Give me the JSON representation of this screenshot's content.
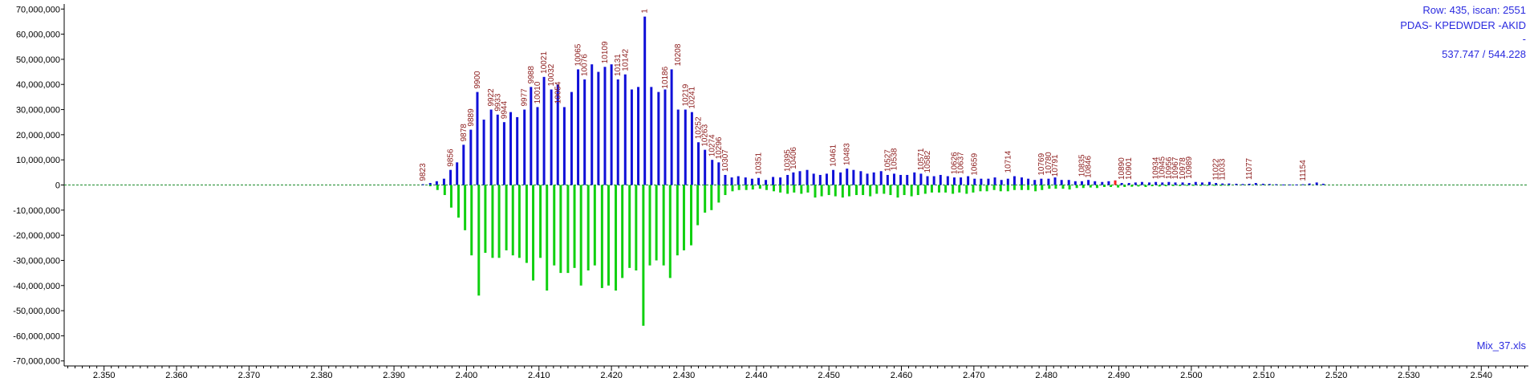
{
  "header": {
    "row_scan": "Row: 435, iscan: 2551",
    "peptide": "PDAS- KPEDWDER -AKID",
    "dash": "-",
    "mz_pair": "537.747 / 544.228"
  },
  "footer": {
    "file_name": "Mix_37.xls"
  },
  "colors": {
    "positive": "#1010d8",
    "negative": "#10d010",
    "flag": "#ff2020",
    "peak_label": "#8b1a1a",
    "baseline": "#1a8a2a",
    "axis": "#000000"
  },
  "chart_data": {
    "type": "bar",
    "title": "",
    "xlabel": "",
    "ylabel": "",
    "xlim": [
      2344.5,
      2546.5
    ],
    "ylim": [
      -72000000,
      72000000
    ],
    "x_ticks": [
      2350,
      2360,
      2370,
      2380,
      2390,
      2400,
      2410,
      2420,
      2430,
      2440,
      2450,
      2460,
      2470,
      2480,
      2490,
      2500,
      2510,
      2520,
      2530,
      2540
    ],
    "x_tick_labels": [
      "2,350",
      "2,360",
      "2,370",
      "2,380",
      "2,390",
      "2,400",
      "2,410",
      "2,420",
      "2,430",
      "2,440",
      "2,450",
      "2,460",
      "2,470",
      "2,480",
      "2,490",
      "2,500",
      "2,510",
      "2,520",
      "2,530",
      "2,540"
    ],
    "y_ticks": [
      70000000,
      60000000,
      50000000,
      40000000,
      30000000,
      20000000,
      10000000,
      0,
      -10000000,
      -20000000,
      -30000000,
      -40000000,
      -50000000,
      -60000000,
      -70000000
    ],
    "y_tick_labels": [
      "70,000,000",
      "60,000,000",
      "50,000,000",
      "40,000,000",
      "30,000,000",
      "20,000,000",
      "10,000,000",
      "0",
      "-10,000,000",
      "-20,000,000",
      "-30,000,000",
      "-40,000,000",
      "-50,000,000",
      "-60,000,000",
      "-70,000,000"
    ],
    "grid": false,
    "baseline_style": "dashed",
    "series": [
      {
        "color_key": "positive",
        "x": [
          2394.0,
          2395.0,
          2395.9,
          2396.9,
          2397.8,
          2398.7,
          2399.6,
          2400.6,
          2401.5,
          2402.4,
          2403.4,
          2404.3,
          2405.2,
          2406.1,
          2407.0,
          2408.0,
          2408.9,
          2409.8,
          2410.7,
          2411.7,
          2412.6,
          2413.5,
          2414.5,
          2415.4,
          2416.3,
          2417.3,
          2418.2,
          2419.1,
          2420.0,
          2420.9,
          2421.9,
          2422.8,
          2423.7,
          2424.6,
          2425.5,
          2426.5,
          2427.4,
          2428.3,
          2429.2,
          2430.2,
          2431.1,
          2432.0,
          2432.9,
          2433.9,
          2434.8,
          2435.7,
          2436.6,
          2437.5,
          2438.5,
          2439.4,
          2440.3,
          2441.3,
          2442.3,
          2443.3,
          2444.3,
          2445.1,
          2446.0,
          2447.0,
          2447.9,
          2448.8,
          2449.7,
          2450.6,
          2451.6,
          2452.5,
          2453.4,
          2454.4,
          2455.3,
          2456.2,
          2457.2,
          2458.1,
          2459.0,
          2459.9,
          2460.8,
          2461.8,
          2462.7,
          2463.6,
          2464.5,
          2465.4,
          2466.4,
          2467.3,
          2468.2,
          2469.2,
          2470.1,
          2471.0,
          2472.0,
          2472.9,
          2473.8,
          2474.7,
          2475.6,
          2476.6,
          2477.5,
          2478.4,
          2479.3,
          2480.3,
          2481.2,
          2482.1,
          2483.1,
          2484.0,
          2484.9,
          2485.8,
          2486.7,
          2487.7,
          2488.6,
          2489.5,
          2490.4,
          2491.4,
          2492.3,
          2493.2,
          2494.2,
          2495.1,
          2496.0,
          2496.9,
          2497.8,
          2498.8,
          2499.7,
          2500.6,
          2501.5,
          2502.5,
          2503.4,
          2504.3,
          2505.2,
          2506.2,
          2507.1,
          2508.0,
          2508.9,
          2509.9,
          2510.8,
          2511.7,
          2512.7,
          2513.6,
          2514.5,
          2515.4,
          2516.3,
          2517.3,
          2518.2
        ],
        "values": [
          300000,
          800000,
          1500000,
          2500000,
          6000000,
          9000000,
          16000000,
          22000000,
          37000000,
          26000000,
          30000000,
          28000000,
          25000000,
          29000000,
          27000000,
          30000000,
          39000000,
          31000000,
          43000000,
          38000000,
          40000000,
          31000000,
          37000000,
          46000000,
          42000000,
          48000000,
          45000000,
          47000000,
          48000000,
          42000000,
          44000000,
          38000000,
          39000000,
          67000000,
          39000000,
          37000000,
          38000000,
          46000000,
          30000000,
          30000000,
          29000000,
          17000000,
          14000000,
          10000000,
          9000000,
          4000000,
          3000000,
          3500000,
          3000000,
          2500000,
          2800000,
          2000000,
          3200000,
          3000000,
          4000000,
          5000000,
          5500000,
          6000000,
          4500000,
          4000000,
          4500000,
          6000000,
          5000000,
          6500000,
          6000000,
          5500000,
          4500000,
          5000000,
          5500000,
          4000000,
          4500000,
          4000000,
          4000000,
          5000000,
          4500000,
          3500000,
          3500000,
          4000000,
          3500000,
          3000000,
          3000000,
          3500000,
          2500000,
          2500000,
          2500000,
          3000000,
          2000000,
          2500000,
          3500000,
          3000000,
          2500000,
          2000000,
          2500000,
          2500000,
          3000000,
          2000000,
          2000000,
          1500000,
          1500000,
          2000000,
          1500000,
          1200000,
          1500000,
          1800000,
          800000,
          800000,
          1000000,
          1200000,
          1000000,
          1200000,
          1000000,
          1200000,
          1000000,
          1000000,
          800000,
          1200000,
          1000000,
          1200000,
          800000,
          600000,
          600000,
          500000,
          400000,
          500000,
          800000,
          500000,
          400000,
          300000,
          200000,
          200000,
          200000,
          300000,
          600000,
          1000000,
          500000
        ]
      },
      {
        "color_key": "negative",
        "x": [
          2395.0,
          2396.0,
          2397.0,
          2397.9,
          2398.9,
          2399.8,
          2400.7,
          2401.7,
          2402.6,
          2403.6,
          2404.5,
          2405.5,
          2406.4,
          2407.3,
          2408.3,
          2409.2,
          2410.2,
          2411.1,
          2412.1,
          2413.0,
          2414.0,
          2414.9,
          2415.8,
          2416.8,
          2417.7,
          2418.7,
          2419.6,
          2420.6,
          2421.5,
          2422.5,
          2423.4,
          2424.4,
          2425.3,
          2426.2,
          2427.2,
          2428.1,
          2429.1,
          2430.0,
          2431.0,
          2431.9,
          2432.9,
          2433.8,
          2434.8,
          2435.7,
          2436.7,
          2437.6,
          2438.6,
          2439.5,
          2440.5,
          2441.4,
          2442.4,
          2443.3,
          2444.3,
          2445.2,
          2446.2,
          2447.1,
          2448.1,
          2449.0,
          2450.0,
          2450.9,
          2451.9,
          2452.8,
          2453.8,
          2454.7,
          2455.7,
          2456.6,
          2457.6,
          2458.5,
          2459.5,
          2460.4,
          2461.4,
          2462.3,
          2463.3,
          2464.2,
          2465.2,
          2466.1,
          2467.1,
          2468.0,
          2469.0,
          2469.9,
          2470.9,
          2471.8,
          2472.8,
          2473.7,
          2474.7,
          2475.6,
          2476.6,
          2477.5,
          2478.5,
          2479.4,
          2480.4,
          2481.3,
          2482.3,
          2483.2,
          2484.2,
          2485.1,
          2486.1,
          2487.0,
          2488.0,
          2488.9,
          2489.9,
          2490.8,
          2491.8,
          2492.7,
          2493.7,
          2494.6,
          2495.6,
          2496.5,
          2497.5,
          2498.4,
          2499.4,
          2500.3,
          2501.3,
          2502.2,
          2503.2,
          2504.1,
          2505.1
        ],
        "values": [
          -500000,
          -2000000,
          -4000000,
          -9000000,
          -13000000,
          -18000000,
          -28000000,
          -44000000,
          -27000000,
          -29000000,
          -29000000,
          -26000000,
          -28000000,
          -29000000,
          -31000000,
          -38000000,
          -29000000,
          -42000000,
          -32000000,
          -35000000,
          -35000000,
          -33000000,
          -40000000,
          -34000000,
          -32000000,
          -41000000,
          -40000000,
          -42000000,
          -37000000,
          -33000000,
          -34000000,
          -56000000,
          -32000000,
          -30000000,
          -32000000,
          -37000000,
          -28000000,
          -26000000,
          -24000000,
          -16000000,
          -11000000,
          -10000000,
          -7000000,
          -4000000,
          -2500000,
          -2000000,
          -2000000,
          -1800000,
          -1500000,
          -2000000,
          -2500000,
          -3000000,
          -3500000,
          -3000000,
          -3500000,
          -3000000,
          -5000000,
          -4500000,
          -4000000,
          -4500000,
          -5000000,
          -4500000,
          -4000000,
          -4000000,
          -4500000,
          -3500000,
          -3500000,
          -4000000,
          -5000000,
          -4000000,
          -4500000,
          -4000000,
          -3500000,
          -3000000,
          -3000000,
          -3000000,
          -3500000,
          -3000000,
          -3500000,
          -3000000,
          -2500000,
          -2500000,
          -2000000,
          -2500000,
          -2500000,
          -2000000,
          -2000000,
          -2000000,
          -2500000,
          -2000000,
          -1500000,
          -1500000,
          -1500000,
          -1800000,
          -1200000,
          -1200000,
          -1000000,
          -1200000,
          -800000,
          -800000,
          -1000000,
          -800000,
          -700000,
          -600000,
          -800000,
          -500000,
          -600000,
          -500000,
          -400000,
          -400000,
          -300000,
          -300000,
          -300000,
          -200000,
          -200000,
          -200000,
          -200000
        ]
      },
      {
        "color_key": "flag",
        "x": [
          2489.5
        ],
        "values": [
          1800000
        ]
      }
    ],
    "annotations": [
      {
        "x": 2394.0,
        "y": 300000,
        "label": "9823"
      },
      {
        "x": 2397.8,
        "y": 6000000,
        "label": "9856"
      },
      {
        "x": 2399.6,
        "y": 16000000,
        "label": "9878"
      },
      {
        "x": 2400.6,
        "y": 22000000,
        "label": "9889"
      },
      {
        "x": 2401.5,
        "y": 37000000,
        "label": "9900"
      },
      {
        "x": 2403.4,
        "y": 30000000,
        "label": "9922"
      },
      {
        "x": 2404.3,
        "y": 28000000,
        "label": "9933"
      },
      {
        "x": 2405.2,
        "y": 25000000,
        "label": "9944"
      },
      {
        "x": 2408.0,
        "y": 30000000,
        "label": "9977"
      },
      {
        "x": 2408.9,
        "y": 39000000,
        "label": "9988"
      },
      {
        "x": 2409.8,
        "y": 31000000,
        "label": "10010"
      },
      {
        "x": 2410.7,
        "y": 43000000,
        "label": "10021"
      },
      {
        "x": 2411.7,
        "y": 38000000,
        "label": "10032"
      },
      {
        "x": 2412.6,
        "y": 31000000,
        "label": "10054"
      },
      {
        "x": 2415.4,
        "y": 46000000,
        "label": "10065"
      },
      {
        "x": 2416.3,
        "y": 42000000,
        "label": "10076"
      },
      {
        "x": 2419.1,
        "y": 47000000,
        "label": "10109"
      },
      {
        "x": 2420.9,
        "y": 42000000,
        "label": "10131"
      },
      {
        "x": 2421.9,
        "y": 44000000,
        "label": "10142"
      },
      {
        "x": 2424.6,
        "y": 67000000,
        "label": "1"
      },
      {
        "x": 2427.4,
        "y": 37000000,
        "label": "10186"
      },
      {
        "x": 2429.2,
        "y": 46000000,
        "label": "10208"
      },
      {
        "x": 2430.2,
        "y": 30000000,
        "label": "10219"
      },
      {
        "x": 2431.1,
        "y": 29000000,
        "label": "10241"
      },
      {
        "x": 2432.0,
        "y": 17000000,
        "label": "10252"
      },
      {
        "x": 2432.9,
        "y": 14000000,
        "label": "10263"
      },
      {
        "x": 2433.9,
        "y": 10000000,
        "label": "10274"
      },
      {
        "x": 2434.8,
        "y": 9000000,
        "label": "10296"
      },
      {
        "x": 2435.7,
        "y": 4000000,
        "label": "10307"
      },
      {
        "x": 2440.3,
        "y": 2800000,
        "label": "10351"
      },
      {
        "x": 2444.3,
        "y": 4000000,
        "label": "10395"
      },
      {
        "x": 2445.1,
        "y": 5000000,
        "label": "10406"
      },
      {
        "x": 2450.6,
        "y": 6000000,
        "label": "10461"
      },
      {
        "x": 2452.5,
        "y": 6500000,
        "label": "10483"
      },
      {
        "x": 2458.1,
        "y": 4000000,
        "label": "10527"
      },
      {
        "x": 2459.0,
        "y": 4500000,
        "label": "10538"
      },
      {
        "x": 2462.7,
        "y": 4500000,
        "label": "10571"
      },
      {
        "x": 2463.6,
        "y": 3500000,
        "label": "10582"
      },
      {
        "x": 2467.3,
        "y": 3000000,
        "label": "10626"
      },
      {
        "x": 2468.2,
        "y": 3000000,
        "label": "10637"
      },
      {
        "x": 2470.1,
        "y": 2500000,
        "label": "10659"
      },
      {
        "x": 2474.7,
        "y": 3500000,
        "label": "10714"
      },
      {
        "x": 2479.3,
        "y": 2500000,
        "label": "10769"
      },
      {
        "x": 2480.3,
        "y": 3000000,
        "label": "10780"
      },
      {
        "x": 2481.2,
        "y": 2000000,
        "label": "10791"
      },
      {
        "x": 2484.9,
        "y": 2000000,
        "label": "10835"
      },
      {
        "x": 2485.8,
        "y": 1500000,
        "label": "10846"
      },
      {
        "x": 2490.4,
        "y": 800000,
        "label": "10890"
      },
      {
        "x": 2491.4,
        "y": 800000,
        "label": "10901"
      },
      {
        "x": 2495.1,
        "y": 1000000,
        "label": "10934"
      },
      {
        "x": 2496.0,
        "y": 1200000,
        "label": "10945"
      },
      {
        "x": 2496.9,
        "y": 1000000,
        "label": "10956"
      },
      {
        "x": 2497.8,
        "y": 1000000,
        "label": "10967"
      },
      {
        "x": 2498.8,
        "y": 800000,
        "label": "10978"
      },
      {
        "x": 2499.7,
        "y": 1200000,
        "label": "10989"
      },
      {
        "x": 2503.4,
        "y": 600000,
        "label": "11022"
      },
      {
        "x": 2504.3,
        "y": 600000,
        "label": "11033"
      },
      {
        "x": 2508.0,
        "y": 800000,
        "label": "11077"
      },
      {
        "x": 2515.4,
        "y": 300000,
        "label": "11154"
      }
    ]
  }
}
